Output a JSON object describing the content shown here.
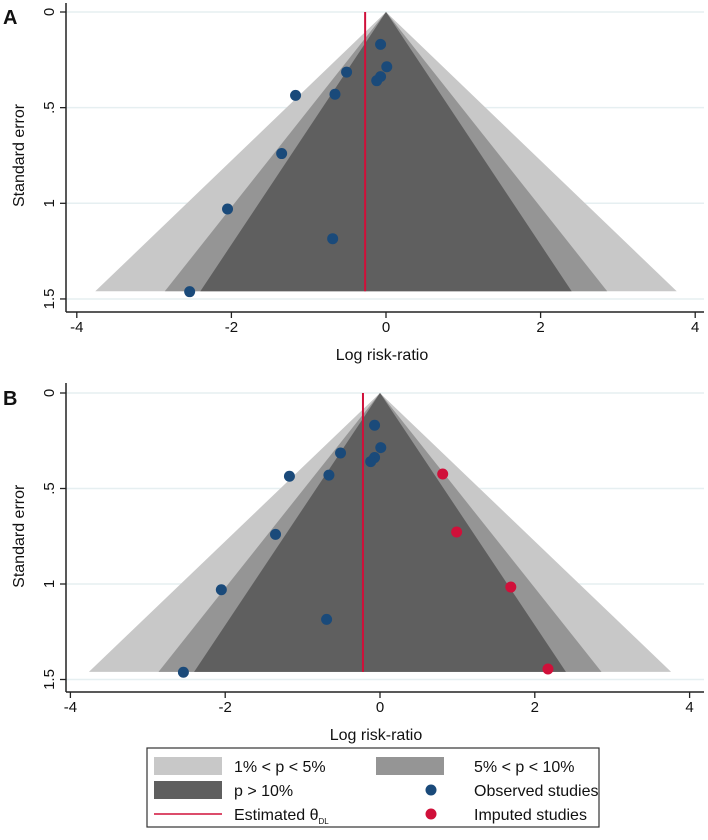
{
  "colors": {
    "contour_1_5": "#c8c8c8",
    "contour_5_10": "#959595",
    "contour_gt10": "#5f5f5f",
    "observed": "#1a4a7a",
    "imputed": "#d0103a",
    "estimate_line": "#d0103a",
    "grid": "#e6eff1"
  },
  "legend": {
    "items": [
      {
        "label": "1% < p < 5%",
        "kind": "contour_1_5"
      },
      {
        "label": "5% < p < 10%",
        "kind": "contour_5_10"
      },
      {
        "label": "p > 10%",
        "kind": "contour_gt10"
      },
      {
        "label": "Observed studies",
        "kind": "observed"
      },
      {
        "label": "Estimated θ",
        "sub": "DL",
        "kind": "estimate_line"
      },
      {
        "label": "Imputed studies",
        "kind": "imputed"
      }
    ]
  },
  "chart_data": [
    {
      "type": "scatter",
      "panel_label": "A",
      "title": "",
      "xlabel": "Log risk-ratio",
      "ylabel": "Standard error",
      "xlim": [
        -4,
        4
      ],
      "ylim": [
        0,
        1.5
      ],
      "y_reversed": true,
      "xticks": [
        "-4",
        "-2",
        "0",
        "2",
        "4"
      ],
      "xtick_values": [
        -4,
        -2,
        0,
        2,
        4
      ],
      "yticks": [
        "0",
        ".5",
        "1",
        "1.5"
      ],
      "ytick_values": [
        0,
        0.5,
        1,
        1.5
      ],
      "grid": true,
      "contour_center": 0,
      "contour_z": {
        "p_1_5": 2.576,
        "p_5_10": 1.96,
        "p_gt10": 1.645
      },
      "max_se": 1.46,
      "estimate": -0.27,
      "observed": [
        {
          "x": -0.07,
          "se": 0.169
        },
        {
          "x": 0.01,
          "se": 0.286
        },
        {
          "x": -0.51,
          "se": 0.314
        },
        {
          "x": -0.07,
          "se": 0.338
        },
        {
          "x": -0.12,
          "se": 0.359
        },
        {
          "x": -0.66,
          "se": 0.43
        },
        {
          "x": -1.17,
          "se": 0.436
        },
        {
          "x": -1.35,
          "se": 0.74
        },
        {
          "x": -2.05,
          "se": 1.03
        },
        {
          "x": -0.69,
          "se": 1.185
        },
        {
          "x": -2.54,
          "se": 1.462
        }
      ],
      "imputed": []
    },
    {
      "type": "scatter",
      "panel_label": "B",
      "title": "",
      "xlabel": "Log risk-ratio",
      "ylabel": "Standard error",
      "xlim": [
        -4,
        4
      ],
      "ylim": [
        0,
        1.5
      ],
      "y_reversed": true,
      "xticks": [
        "-4",
        "-2",
        "0",
        "2",
        "4"
      ],
      "xtick_values": [
        -4,
        -2,
        0,
        2,
        4
      ],
      "yticks": [
        "0",
        ".5",
        "1",
        "1.5"
      ],
      "ytick_values": [
        0,
        0.5,
        1,
        1.5
      ],
      "grid": true,
      "contour_center": 0,
      "contour_z": {
        "p_1_5": 2.576,
        "p_5_10": 1.96,
        "p_gt10": 1.645
      },
      "max_se": 1.46,
      "estimate": -0.22,
      "observed": [
        {
          "x": -0.07,
          "se": 0.169
        },
        {
          "x": 0.01,
          "se": 0.286
        },
        {
          "x": -0.51,
          "se": 0.314
        },
        {
          "x": -0.07,
          "se": 0.338
        },
        {
          "x": -0.12,
          "se": 0.359
        },
        {
          "x": -0.66,
          "se": 0.43
        },
        {
          "x": -1.17,
          "se": 0.436
        },
        {
          "x": -1.35,
          "se": 0.74
        },
        {
          "x": -2.05,
          "se": 1.03
        },
        {
          "x": -0.69,
          "se": 1.185
        },
        {
          "x": -2.54,
          "se": 1.462
        }
      ],
      "imputed": [
        {
          "x": 0.81,
          "se": 0.424
        },
        {
          "x": 0.99,
          "se": 0.728
        },
        {
          "x": 1.69,
          "se": 1.016
        },
        {
          "x": 2.17,
          "se": 1.445
        }
      ]
    }
  ]
}
